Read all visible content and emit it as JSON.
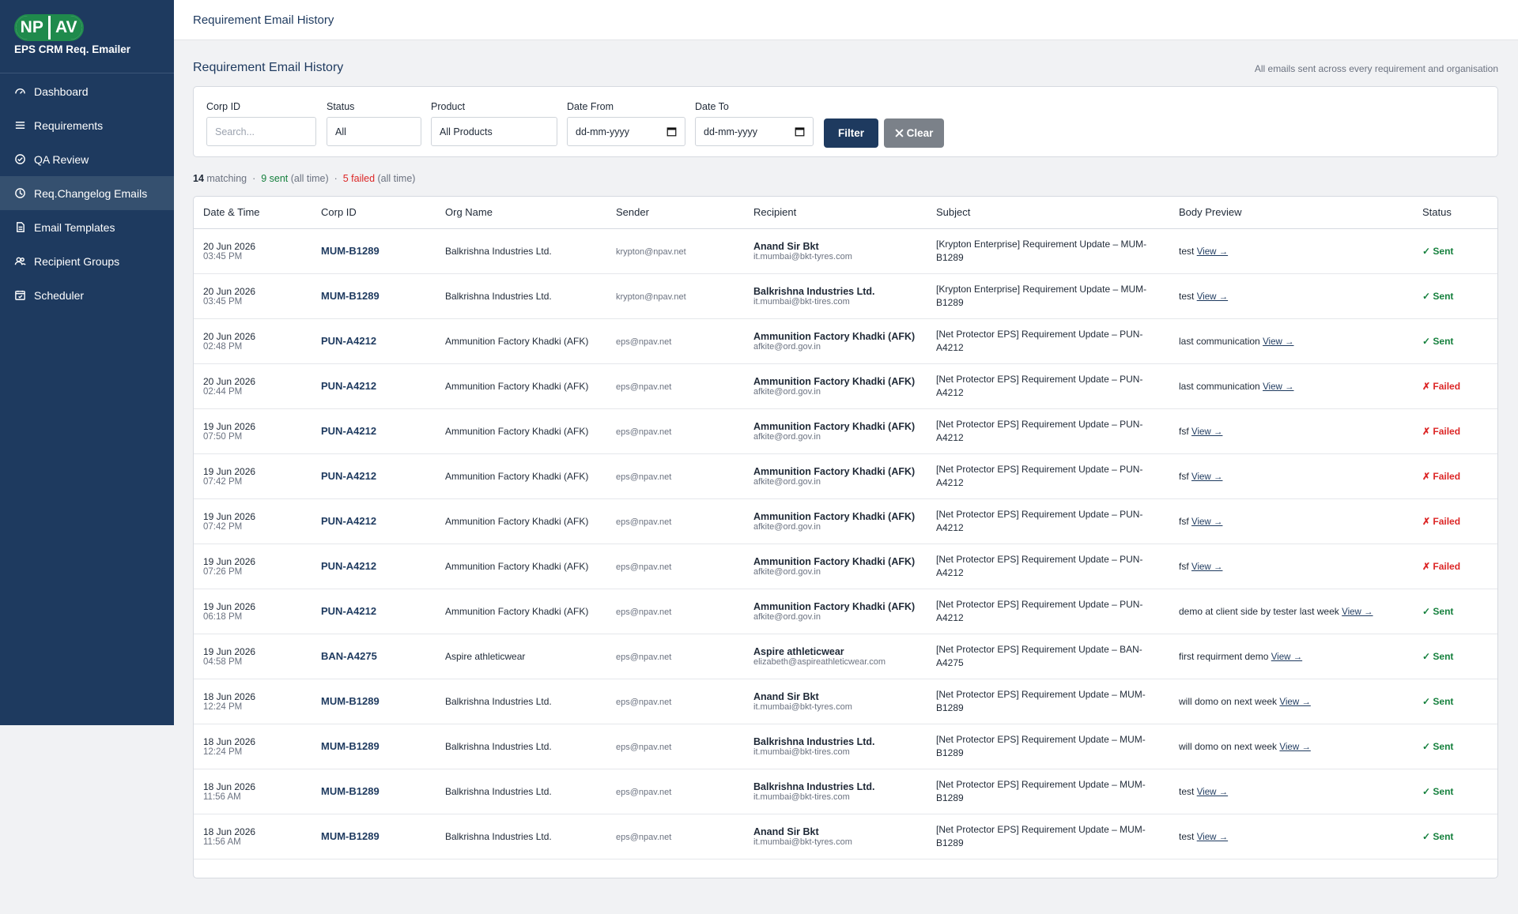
{
  "sidebar": {
    "logo_left": "NP",
    "logo_right": "AV",
    "app_name": "EPS CRM Req. Emailer",
    "nav": [
      "Dashboard",
      "Requirements",
      "QA Review",
      "Req.Changelog Emails",
      "Email Templates",
      "Recipient Groups",
      "Scheduler"
    ]
  },
  "topbar": {
    "title": "Requirement Email History"
  },
  "header": {
    "title": "Requirement Email History",
    "subtitle": "All emails sent across every requirement and organisation"
  },
  "filters": {
    "fields": [
      {
        "label": "Corp ID",
        "value": "Search..."
      },
      {
        "label": "Status",
        "value": "All"
      },
      {
        "label": "Product",
        "value": "All Products"
      },
      {
        "label": "Date From",
        "value": "dd-mm-yyyy"
      },
      {
        "label": "Date To",
        "value": "dd-mm-yyyy"
      }
    ],
    "filter_button": "Filter",
    "clear_button": "Clear"
  },
  "summary": {
    "count": 14,
    "matching": "matching",
    "sent": "9 sent",
    "sent_note": "(all time)",
    "failed": "5 failed",
    "failed_note": "(all time)"
  },
  "table": {
    "columns": [
      "Date & Time",
      "Corp ID",
      "Org Name",
      "Sender",
      "Recipient",
      "Subject",
      "Body Preview",
      "Status"
    ],
    "view_link": "View →",
    "rows": [
      {
        "date": "20 Jun 2026",
        "time": "03:45 PM",
        "corp_id": "MUM-B1289",
        "org": "Balkrishna Industries Ltd.",
        "sender": "krypton@npav.net",
        "recipient_name": "Anand Sir Bkt",
        "recipient_email": "it.mumbai@bkt-tyres.com",
        "subject": "[Krypton Enterprise] Requirement Update – MUM-B1289",
        "body": "test",
        "status": "✓ Sent",
        "status_color": "#15803d"
      },
      {
        "date": "20 Jun 2026",
        "time": "03:45 PM",
        "corp_id": "MUM-B1289",
        "org": "Balkrishna Industries Ltd.",
        "sender": "krypton@npav.net",
        "recipient_name": "Balkrishna Industries Ltd.",
        "recipient_email": "it.mumbai@bkt-tires.com",
        "subject": "[Krypton Enterprise] Requirement Update – MUM-B1289",
        "body": "test",
        "status": "✓ Sent",
        "status_color": "#15803d"
      },
      {
        "date": "20 Jun 2026",
        "time": "02:48 PM",
        "corp_id": "PUN-A4212",
        "org": "Ammunition Factory Khadki (AFK)",
        "sender": "eps@npav.net",
        "recipient_name": "Ammunition Factory Khadki (AFK)",
        "recipient_email": "afkite@ord.gov.in",
        "subject": "[Net Protector EPS] Requirement Update – PUN-A4212",
        "body": "last communication",
        "status": "✓ Sent",
        "status_color": "#15803d"
      },
      {
        "date": "20 Jun 2026",
        "time": "02:44 PM",
        "corp_id": "PUN-A4212",
        "org": "Ammunition Factory Khadki (AFK)",
        "sender": "eps@npav.net",
        "recipient_name": "Ammunition Factory Khadki (AFK)",
        "recipient_email": "afkite@ord.gov.in",
        "subject": "[Net Protector EPS] Requirement Update – PUN-A4212",
        "body": "last communication",
        "status": "✗ Failed",
        "status_color": "#dc2626"
      },
      {
        "date": "19 Jun 2026",
        "time": "07:50 PM",
        "corp_id": "PUN-A4212",
        "org": "Ammunition Factory Khadki (AFK)",
        "sender": "eps@npav.net",
        "recipient_name": "Ammunition Factory Khadki (AFK)",
        "recipient_email": "afkite@ord.gov.in",
        "subject": "[Net Protector EPS] Requirement Update – PUN-A4212",
        "body": "fsf",
        "status": "✗ Failed",
        "status_color": "#dc2626"
      },
      {
        "date": "19 Jun 2026",
        "time": "07:42 PM",
        "corp_id": "PUN-A4212",
        "org": "Ammunition Factory Khadki (AFK)",
        "sender": "eps@npav.net",
        "recipient_name": "Ammunition Factory Khadki (AFK)",
        "recipient_email": "afkite@ord.gov.in",
        "subject": "[Net Protector EPS] Requirement Update – PUN-A4212",
        "body": "fsf",
        "status": "✗ Failed",
        "status_color": "#dc2626"
      },
      {
        "date": "19 Jun 2026",
        "time": "07:42 PM",
        "corp_id": "PUN-A4212",
        "org": "Ammunition Factory Khadki (AFK)",
        "sender": "eps@npav.net",
        "recipient_name": "Ammunition Factory Khadki (AFK)",
        "recipient_email": "afkite@ord.gov.in",
        "subject": "[Net Protector EPS] Requirement Update – PUN-A4212",
        "body": "fsf",
        "status": "✗ Failed",
        "status_color": "#dc2626"
      },
      {
        "date": "19 Jun 2026",
        "time": "07:26 PM",
        "corp_id": "PUN-A4212",
        "org": "Ammunition Factory Khadki (AFK)",
        "sender": "eps@npav.net",
        "recipient_name": "Ammunition Factory Khadki (AFK)",
        "recipient_email": "afkite@ord.gov.in",
        "subject": "[Net Protector EPS] Requirement Update – PUN-A4212",
        "body": "fsf",
        "status": "✗ Failed",
        "status_color": "#dc2626"
      },
      {
        "date": "19 Jun 2026",
        "time": "06:18 PM",
        "corp_id": "PUN-A4212",
        "org": "Ammunition Factory Khadki (AFK)",
        "sender": "eps@npav.net",
        "recipient_name": "Ammunition Factory Khadki (AFK)",
        "recipient_email": "afkite@ord.gov.in",
        "subject": "[Net Protector EPS] Requirement Update – PUN-A4212",
        "body": "demo at client side by tester last week",
        "status": "✓ Sent",
        "status_color": "#15803d"
      },
      {
        "date": "19 Jun 2026",
        "time": "04:58 PM",
        "corp_id": "BAN-A4275",
        "org": "Aspire athleticwear",
        "sender": "eps@npav.net",
        "recipient_name": "Aspire athleticwear",
        "recipient_email": "elizabeth@aspireathleticwear.com",
        "subject": "[Net Protector EPS] Requirement Update – BAN-A4275",
        "body": "first requirment demo",
        "status": "✓ Sent",
        "status_color": "#15803d"
      },
      {
        "date": "18 Jun 2026",
        "time": "12:24 PM",
        "corp_id": "MUM-B1289",
        "org": "Balkrishna Industries Ltd.",
        "sender": "eps@npav.net",
        "recipient_name": "Anand Sir Bkt",
        "recipient_email": "it.mumbai@bkt-tyres.com",
        "subject": "[Net Protector EPS] Requirement Update – MUM-B1289",
        "body": "will domo on next week",
        "status": "✓ Sent",
        "status_color": "#15803d"
      },
      {
        "date": "18 Jun 2026",
        "time": "12:24 PM",
        "corp_id": "MUM-B1289",
        "org": "Balkrishna Industries Ltd.",
        "sender": "eps@npav.net",
        "recipient_name": "Balkrishna Industries Ltd.",
        "recipient_email": "it.mumbai@bkt-tires.com",
        "subject": "[Net Protector EPS] Requirement Update – MUM-B1289",
        "body": "will domo on next week",
        "status": "✓ Sent",
        "status_color": "#15803d"
      },
      {
        "date": "18 Jun 2026",
        "time": "11:56 AM",
        "corp_id": "MUM-B1289",
        "org": "Balkrishna Industries Ltd.",
        "sender": "eps@npav.net",
        "recipient_name": "Balkrishna Industries Ltd.",
        "recipient_email": "it.mumbai@bkt-tires.com",
        "subject": "[Net Protector EPS] Requirement Update – MUM-B1289",
        "body": "test",
        "status": "✓ Sent",
        "status_color": "#15803d"
      },
      {
        "date": "18 Jun 2026",
        "time": "11:56 AM",
        "corp_id": "MUM-B1289",
        "org": "Balkrishna Industries Ltd.",
        "sender": "eps@npav.net",
        "recipient_name": "Anand Sir Bkt",
        "recipient_email": "it.mumbai@bkt-tyres.com",
        "subject": "[Net Protector EPS] Requirement Update – MUM-B1289",
        "body": "test",
        "status": "✓ Sent",
        "status_color": "#15803d"
      }
    ]
  }
}
